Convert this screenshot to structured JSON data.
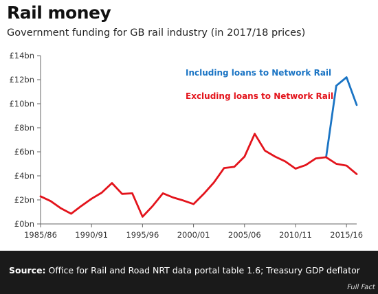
{
  "header": {
    "title": "Rail money",
    "subtitle": "Government funding for GB rail industry (in 2017/18 prices)"
  },
  "footer": {
    "source_label": "Source:",
    "source_text": "Office for Rail and Road NRT data portal table 1.6; Treasury GDP deflator",
    "logo_text": "Full Fact"
  },
  "colors": {
    "including": "#1a74c4",
    "excluding": "#e3141c",
    "axis": "#666666",
    "grid": "#e3e3e3",
    "footer_bg": "#1a1a1a"
  },
  "chart_data": {
    "type": "line",
    "title": "Rail money",
    "subtitle": "Government funding for GB rail industry (in 2017/18 prices)",
    "xlabel": "",
    "ylabel": "",
    "x": [
      "1985/86",
      "1986/87",
      "1987/88",
      "1988/89",
      "1989/90",
      "1990/91",
      "1991/92",
      "1992/93",
      "1993/94",
      "1994/95",
      "1995/96",
      "1996/97",
      "1997/98",
      "1998/99",
      "1999/00",
      "2000/01",
      "2001/02",
      "2002/03",
      "2003/04",
      "2004/05",
      "2005/06",
      "2006/07",
      "2007/08",
      "2008/09",
      "2009/10",
      "2010/11",
      "2011/12",
      "2012/13",
      "2013/14",
      "2014/15",
      "2015/16",
      "2016/17"
    ],
    "xtick_labels": [
      "1985/86",
      "1990/91",
      "1995/96",
      "2000/01",
      "2005/06",
      "2010/11",
      "2015/16"
    ],
    "ytick_labels": [
      "£0bn",
      "£2bn",
      "£4bn",
      "£6bn",
      "£8bn",
      "£10bn",
      "£12bn",
      "£14bn"
    ],
    "ylim": [
      0,
      14
    ],
    "grid": false,
    "legend": "top-right",
    "series": [
      {
        "name": "Excluding loans to Network Rail",
        "values": [
          2.3,
          1.9,
          1.3,
          0.85,
          1.5,
          2.1,
          2.6,
          3.4,
          2.5,
          2.55,
          0.6,
          1.5,
          2.55,
          2.2,
          1.95,
          1.65,
          2.5,
          3.45,
          4.65,
          4.75,
          5.6,
          7.5,
          6.1,
          5.6,
          5.2,
          4.6,
          4.9,
          5.45,
          5.55,
          5.0,
          4.85,
          4.15
        ]
      },
      {
        "name": "Including loans to Network Rail",
        "values": [
          null,
          null,
          null,
          null,
          null,
          null,
          null,
          null,
          null,
          null,
          null,
          null,
          null,
          null,
          null,
          null,
          null,
          null,
          null,
          null,
          null,
          null,
          null,
          null,
          null,
          null,
          null,
          null,
          5.55,
          11.5,
          12.2,
          9.9
        ]
      }
    ]
  }
}
